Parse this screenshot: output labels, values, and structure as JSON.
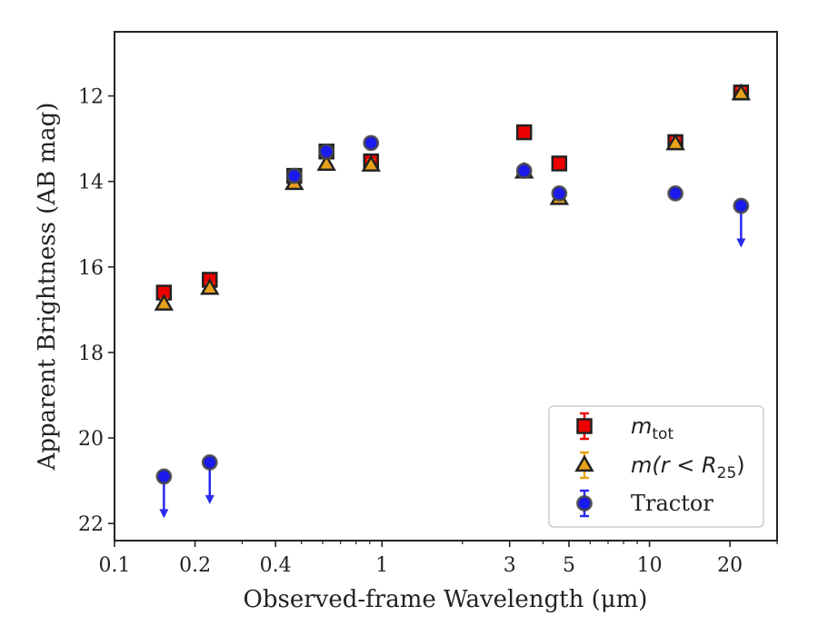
{
  "chart_data": {
    "type": "scatter",
    "xlabel": "Observed-frame Wavelength (μm)",
    "ylabel": "Apparent Brightness (AB mag)",
    "x_scale": "log",
    "xlim": [
      0.1,
      30
    ],
    "ylim": [
      22.4,
      10.5
    ],
    "y_inverted": true,
    "x_ticks": [
      {
        "value": 0.1,
        "label": "0.1"
      },
      {
        "value": 0.2,
        "label": "0.2"
      },
      {
        "value": 0.4,
        "label": "0.4"
      },
      {
        "value": 1,
        "label": "1"
      },
      {
        "value": 3,
        "label": "3"
      },
      {
        "value": 5,
        "label": "5"
      },
      {
        "value": 10,
        "label": "10"
      },
      {
        "value": 20,
        "label": "20"
      }
    ],
    "y_ticks": [
      {
        "value": 12,
        "label": "12"
      },
      {
        "value": 14,
        "label": "14"
      },
      {
        "value": 16,
        "label": "16"
      },
      {
        "value": 18,
        "label": "18"
      },
      {
        "value": 20,
        "label": "20"
      },
      {
        "value": 22,
        "label": "22"
      }
    ],
    "legend_position": "bottom-right",
    "series": [
      {
        "name": "m_tot",
        "label_main": "m",
        "label_sub": "tot",
        "marker": "square",
        "color": "#ee0000",
        "edge": "#222222",
        "errcolor": "#ee0000",
        "points": [
          {
            "x": 0.153,
            "y": 16.6
          },
          {
            "x": 0.227,
            "y": 16.3
          },
          {
            "x": 0.47,
            "y": 13.87
          },
          {
            "x": 0.62,
            "y": 13.3
          },
          {
            "x": 0.91,
            "y": 13.53
          },
          {
            "x": 3.4,
            "y": 12.85
          },
          {
            "x": 4.6,
            "y": 13.58
          },
          {
            "x": 12.5,
            "y": 13.08
          },
          {
            "x": 22.0,
            "y": 11.92
          }
        ]
      },
      {
        "name": "m(r<R_25)",
        "label_main": "m(r < R",
        "label_sub": "25",
        "label_tail": ")",
        "marker": "triangle",
        "color": "#e8a21c",
        "edge": "#222222",
        "errcolor": "#e8a21c",
        "points": [
          {
            "x": 0.153,
            "y": 16.87
          },
          {
            "x": 0.227,
            "y": 16.5
          },
          {
            "x": 0.47,
            "y": 14.05
          },
          {
            "x": 0.62,
            "y": 13.6
          },
          {
            "x": 0.91,
            "y": 13.62
          },
          {
            "x": 3.4,
            "y": 13.78
          },
          {
            "x": 4.6,
            "y": 14.4
          },
          {
            "x": 12.5,
            "y": 13.12
          },
          {
            "x": 22.0,
            "y": 11.95
          }
        ]
      },
      {
        "name": "Tractor",
        "label_main": "Tractor",
        "marker": "circle",
        "color": "#1a1aee",
        "edge": "#444444",
        "errcolor": "#2a2aee",
        "points": [
          {
            "x": 0.153,
            "y": 20.9,
            "upper_limit": true
          },
          {
            "x": 0.227,
            "y": 20.57,
            "upper_limit": true
          },
          {
            "x": 0.47,
            "y": 13.87
          },
          {
            "x": 0.62,
            "y": 13.3
          },
          {
            "x": 0.91,
            "y": 13.1
          },
          {
            "x": 3.4,
            "y": 13.75
          },
          {
            "x": 4.6,
            "y": 14.28
          },
          {
            "x": 12.5,
            "y": 14.28
          },
          {
            "x": 22.0,
            "y": 14.57,
            "upper_limit": true
          }
        ]
      }
    ]
  }
}
